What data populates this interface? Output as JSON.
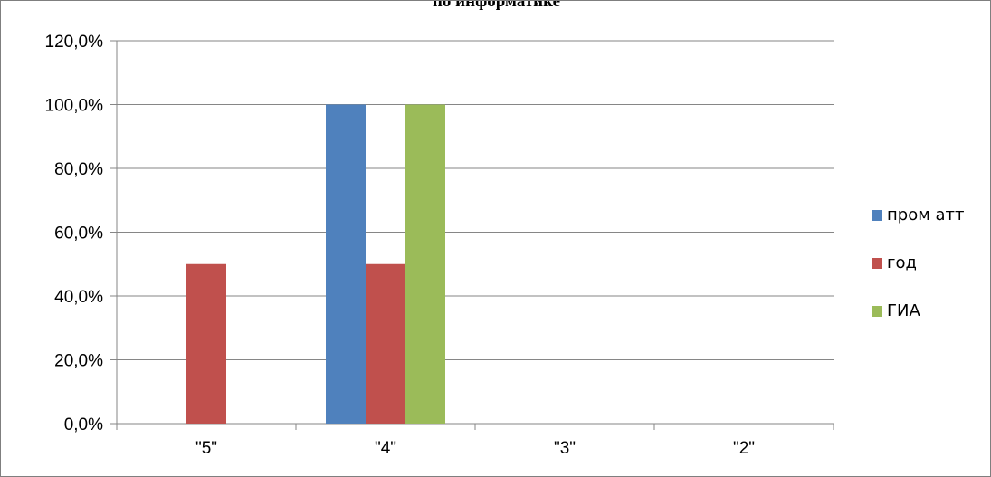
{
  "chart_data": {
    "type": "bar",
    "title": "по информатике",
    "categories": [
      "\"5\"",
      "\"4\"",
      "\"3\"",
      "\"2\""
    ],
    "series": [
      {
        "name": "пром атт",
        "color": "#4F81BD",
        "values": [
          0,
          100,
          0,
          0
        ]
      },
      {
        "name": "год",
        "color": "#C0504D",
        "values": [
          50,
          50,
          0,
          0
        ]
      },
      {
        "name": "ГИА",
        "color": "#9BBB59",
        "values": [
          0,
          100,
          0,
          0
        ]
      }
    ],
    "ylim": [
      0,
      120
    ],
    "yticks": [
      0,
      20,
      40,
      60,
      80,
      100,
      120
    ],
    "ytick_labels": [
      "0,0%",
      "20,0%",
      "40,0%",
      "60,0%",
      "80,0%",
      "100,0%",
      "120,0%"
    ],
    "grid": true,
    "legend_position": "right"
  }
}
